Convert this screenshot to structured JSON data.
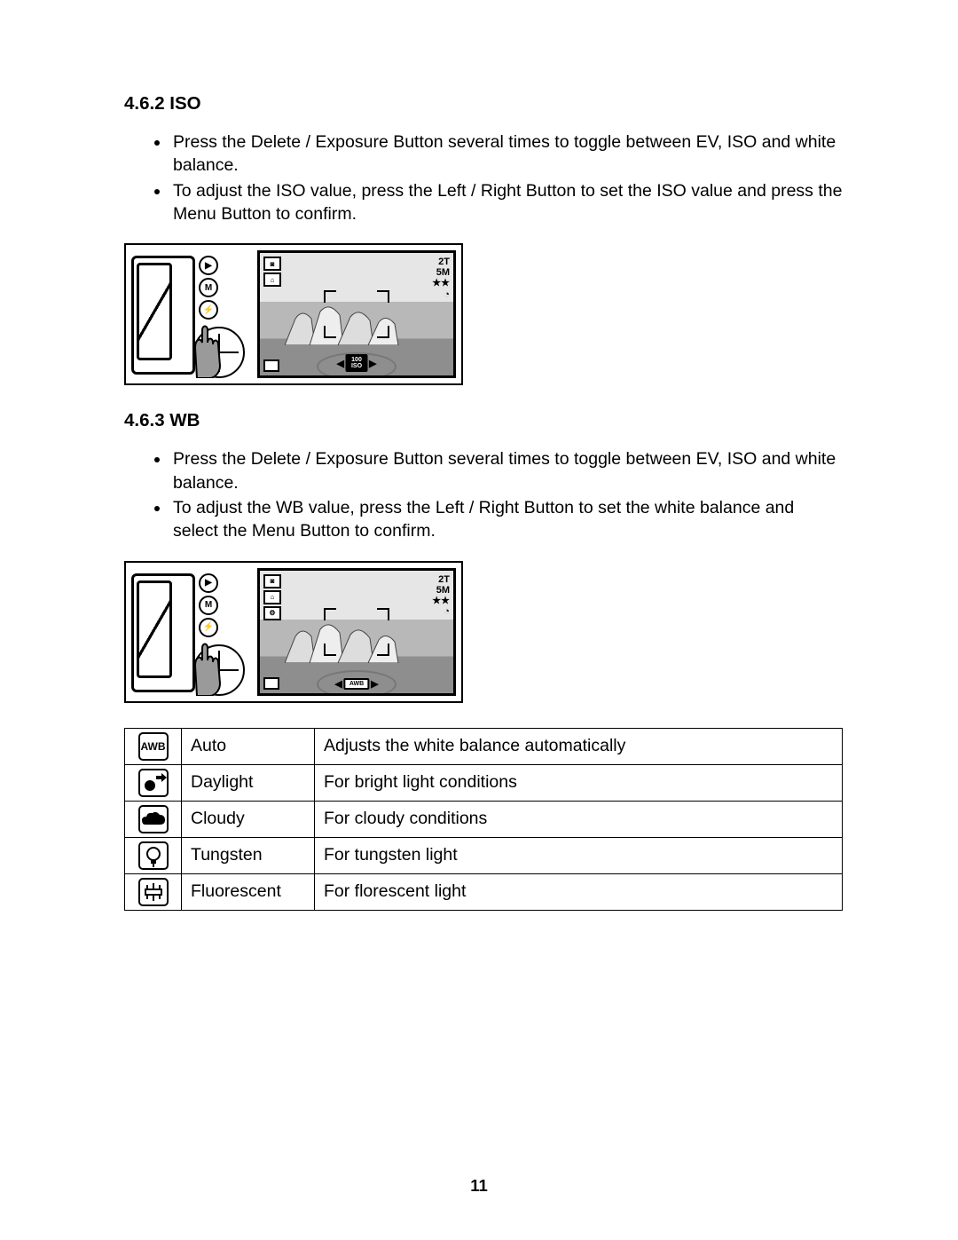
{
  "section1": {
    "heading": "4.6.2  ISO",
    "bullets": [
      "Press the Delete / Exposure Button several times to toggle between EV, ISO and white balance.",
      "To adjust the ISO value, press the Left / Right Button to set the ISO value and press the Menu Button to confirm."
    ],
    "osd": {
      "right_line1": "2T",
      "right_line2": "5M",
      "right_line3": "★★",
      "pill_label": "100\nISO"
    }
  },
  "section2": {
    "heading": "4.6.3  WB",
    "bullets": [
      "Press the Delete / Exposure Button several times to toggle between EV, ISO and white balance.",
      "To adjust the WB value, press the Left / Right Button to set the white balance and select the Menu Button to confirm."
    ],
    "osd": {
      "right_line1": "2T",
      "right_line2": "5M",
      "right_line3": "★★",
      "pill_label": "AWB"
    }
  },
  "table": {
    "rows": [
      {
        "icon": "awb",
        "icon_text": "AWB",
        "name": "Auto",
        "desc": "Adjusts the white balance automatically"
      },
      {
        "icon": "daylight",
        "icon_text": "",
        "name": "Daylight",
        "desc": "For bright light conditions"
      },
      {
        "icon": "cloudy",
        "icon_text": "",
        "name": "Cloudy",
        "desc": "For cloudy conditions"
      },
      {
        "icon": "tungsten",
        "icon_text": "",
        "name": "Tungsten",
        "desc": "For tungsten light"
      },
      {
        "icon": "fluorescent",
        "icon_text": "",
        "name": "Fluorescent",
        "desc": "For florescent light"
      }
    ]
  },
  "page_number": "11"
}
